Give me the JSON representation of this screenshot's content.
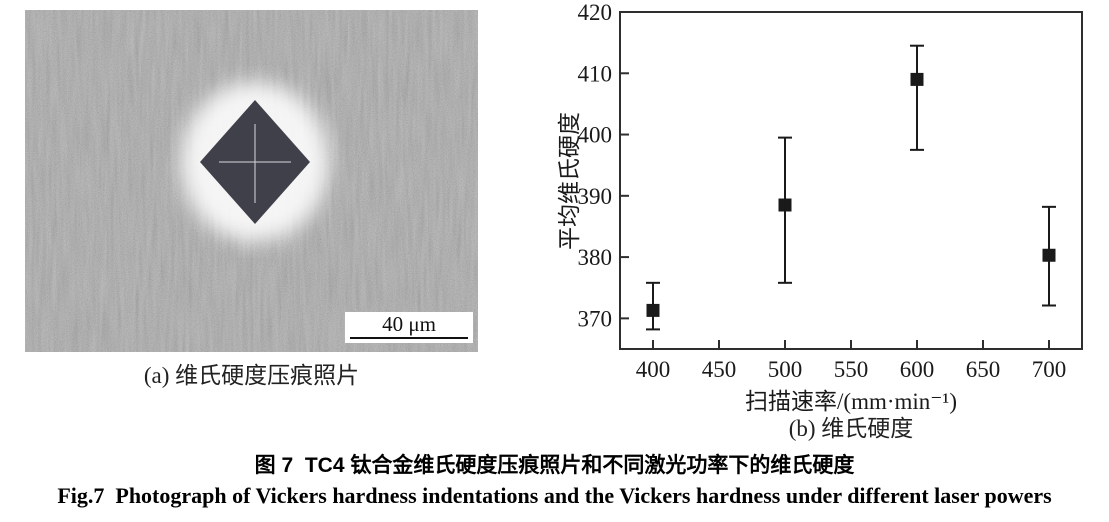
{
  "figure": {
    "photo": {
      "scale_bar_label": "40 μm",
      "caption": "(a) 维氏硬度压痕照片"
    },
    "chart_panel": {
      "caption": "(b) 维氏硬度"
    },
    "caption_zh": "图 7  TC4 钛合金维氏硬度压痕照片和不同激光功率下的维氏硬度",
    "caption_en": "Fig.7  Photograph of Vickers hardness indentations and the Vickers hardness under different laser powers"
  },
  "chart_data": {
    "type": "scatter",
    "title": "",
    "xlabel": "扫描速率/(mm·min⁻¹)",
    "ylabel": "平均维氏硬度",
    "x": [
      400,
      500,
      600,
      700
    ],
    "y": [
      371.3,
      388.5,
      409.0,
      380.3
    ],
    "error_low": [
      368.2,
      375.8,
      397.5,
      372.1
    ],
    "error_high": [
      375.8,
      399.5,
      414.5,
      388.2
    ],
    "xlim": [
      375,
      725
    ],
    "ylim": [
      365,
      420
    ],
    "xticks": [
      400,
      450,
      500,
      550,
      600,
      650,
      700
    ],
    "yticks": [
      370,
      380,
      390,
      400,
      410,
      420
    ],
    "marker": "square",
    "marker_color": "#1a1a1a",
    "axis_color": "#2e2e2e",
    "grid": false,
    "legend": null
  }
}
